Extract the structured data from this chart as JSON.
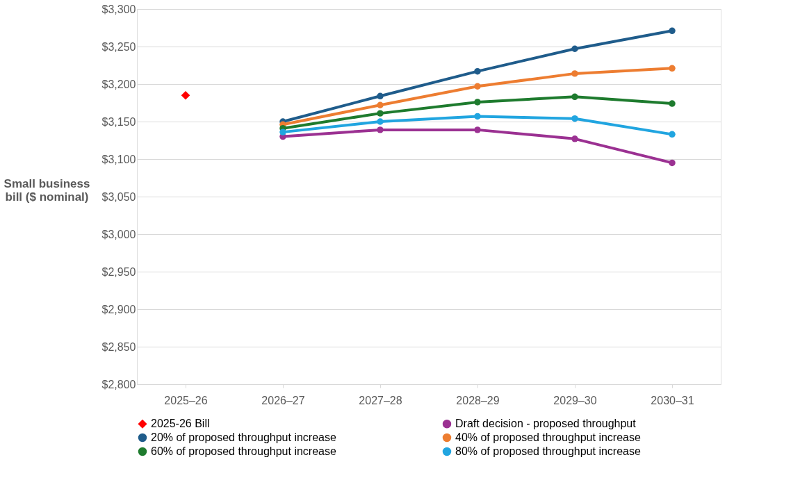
{
  "chart_data": {
    "type": "line",
    "ylabel": "Small business bill ($ nominal)",
    "categories": [
      "2025–26",
      "2026–27",
      "2027–28",
      "2028–29",
      "2029–30",
      "2030–31"
    ],
    "series": [
      {
        "name": "2025-26 Bill",
        "type": "scatter",
        "marker": "diamond",
        "color": "#ff0000",
        "values": [
          3185,
          null,
          null,
          null,
          null,
          null
        ]
      },
      {
        "name": "Draft decision - proposed throughput",
        "marker": "circle",
        "color": "#9b3192",
        "values": [
          null,
          3130,
          3139,
          3139,
          3127,
          3095
        ]
      },
      {
        "name": "20% of proposed throughput increase",
        "marker": "circle",
        "color": "#1f5c8b",
        "values": [
          null,
          3150,
          3184,
          3217,
          3247,
          3271
        ]
      },
      {
        "name": "40% of proposed throughput increase",
        "marker": "circle",
        "color": "#ed7d31",
        "values": [
          null,
          3146,
          3172,
          3197,
          3214,
          3221
        ]
      },
      {
        "name": "60% of proposed throughput increase",
        "marker": "circle",
        "color": "#1e7b2e",
        "values": [
          null,
          3141,
          3161,
          3176,
          3183,
          3174
        ]
      },
      {
        "name": "80% of proposed throughput increase",
        "marker": "circle",
        "color": "#21a5e0",
        "values": [
          null,
          3136,
          3150,
          3157,
          3154,
          3133
        ]
      }
    ],
    "ylim": [
      2800,
      3300
    ],
    "yticks": [
      {
        "value": 2800,
        "label": "$2,800"
      },
      {
        "value": 2850,
        "label": "$2,850"
      },
      {
        "value": 2900,
        "label": "$2,900"
      },
      {
        "value": 2950,
        "label": "$2,950"
      },
      {
        "value": 3000,
        "label": "$3,000"
      },
      {
        "value": 3050,
        "label": "$3,050"
      },
      {
        "value": 3100,
        "label": "$3,100"
      },
      {
        "value": 3150,
        "label": "$3,150"
      },
      {
        "value": 3200,
        "label": "$3,200"
      },
      {
        "value": 3250,
        "label": "$3,250"
      },
      {
        "value": 3300,
        "label": "$3,300"
      }
    ],
    "grid": "y",
    "legend": "bottom",
    "line_style": "solid"
  }
}
